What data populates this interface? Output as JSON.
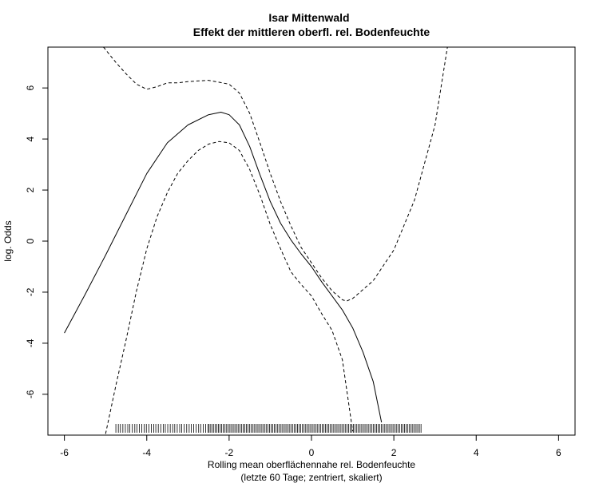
{
  "chart_data": {
    "type": "line",
    "title": "Isar Mittenwald",
    "subtitle": "Effekt der mittleren oberfl. rel. Bodenfeuchte",
    "xlabel": "Rolling mean oberflächennahe rel. Bodenfeuchte",
    "xlabel2": "(letzte 60 Tage; zentriert, skaliert)",
    "ylabel": "log. Odds",
    "xlim": [
      -6.4,
      6.4
    ],
    "ylim": [
      -7.6,
      7.6
    ],
    "xticks": [
      -6,
      -4,
      -2,
      0,
      2,
      4,
      6
    ],
    "yticks": [
      -6,
      -4,
      -2,
      0,
      2,
      4,
      6
    ],
    "grid": false,
    "legend": "none",
    "series": [
      {
        "style": "solid",
        "x": [
          -6.0,
          -5.5,
          -5.0,
          -4.5,
          -4.0,
          -3.5,
          -3.0,
          -2.5,
          -2.2,
          -2.0,
          -1.75,
          -1.5,
          -1.25,
          -1.0,
          -0.75,
          -0.5,
          -0.25,
          0.0,
          0.25,
          0.5,
          0.75,
          1.0,
          1.25,
          1.5,
          1.7
        ],
        "y": [
          -3.6,
          -2.1,
          -0.55,
          1.05,
          2.65,
          3.85,
          4.55,
          4.95,
          5.05,
          4.95,
          4.55,
          3.7,
          2.6,
          1.55,
          0.7,
          0.05,
          -0.5,
          -1.0,
          -1.6,
          -2.15,
          -2.7,
          -3.4,
          -4.35,
          -5.5,
          -7.1
        ]
      },
      {
        "style": "dashed",
        "x": [
          -5.0,
          -4.75,
          -4.5,
          -4.25,
          -4.0,
          -3.75,
          -3.5,
          -3.25,
          -3.0,
          -2.75,
          -2.5,
          -2.25,
          -2.0,
          -1.75,
          -1.5,
          -1.25,
          -1.0,
          -0.75,
          -0.5,
          -0.25,
          0.0,
          0.25,
          0.5,
          0.75,
          1.0
        ],
        "y": [
          -7.55,
          -5.65,
          -3.85,
          -1.95,
          -0.3,
          0.95,
          1.9,
          2.65,
          3.15,
          3.55,
          3.8,
          3.9,
          3.85,
          3.55,
          2.8,
          1.8,
          0.65,
          -0.3,
          -1.2,
          -1.7,
          -2.15,
          -2.85,
          -3.5,
          -4.65,
          -7.45
        ]
      },
      {
        "style": "dashed",
        "x": [
          -5.05,
          -4.75,
          -4.5,
          -4.25,
          -4.0,
          -3.75,
          -3.5,
          -3.25,
          -3.0,
          -2.5,
          -2.0,
          -1.75,
          -1.5,
          -1.25,
          -1.0,
          -0.75,
          -0.5,
          -0.25,
          0.0,
          0.25,
          0.5,
          0.75,
          0.85,
          1.0,
          1.5,
          2.0,
          2.5,
          3.0,
          3.3
        ],
        "y": [
          7.6,
          7.0,
          6.55,
          6.15,
          5.95,
          6.05,
          6.2,
          6.2,
          6.25,
          6.3,
          6.15,
          5.8,
          5.0,
          3.85,
          2.65,
          1.55,
          0.6,
          -0.25,
          -0.85,
          -1.45,
          -1.95,
          -2.3,
          -2.35,
          -2.25,
          -1.55,
          -0.35,
          1.6,
          4.55,
          7.6
        ]
      }
    ],
    "rug_x": [
      -4.75,
      -4.69,
      -4.64,
      -4.58,
      -4.52,
      -4.46,
      -4.41,
      -4.35,
      -4.29,
      -4.24,
      -4.18,
      -4.12,
      -4.06,
      -4.01,
      -3.95,
      -3.89,
      -3.83,
      -3.78,
      -3.72,
      -3.66,
      -3.6,
      -3.55,
      -3.49,
      -3.43,
      -3.37,
      -3.32,
      -3.26,
      -3.2,
      -3.15,
      -3.09,
      -3.03,
      -2.97,
      -2.92,
      -2.86,
      -2.8,
      -2.74,
      -2.69,
      -2.63,
      -2.57,
      -2.51,
      -2.5,
      -2.46,
      -2.42,
      -2.38,
      -2.34,
      -2.3,
      -2.26,
      -2.22,
      -2.18,
      -2.14,
      -2.1,
      -2.06,
      -2.02,
      -1.98,
      -1.94,
      -1.9,
      -1.86,
      -1.82,
      -1.78,
      -1.74,
      -1.7,
      -1.66,
      -1.62,
      -1.58,
      -1.54,
      -1.5,
      -1.46,
      -1.42,
      -1.38,
      -1.34,
      -1.3,
      -1.26,
      -1.22,
      -1.18,
      -1.14,
      -1.1,
      -1.06,
      -1.02,
      -0.98,
      -0.94,
      -0.9,
      -0.86,
      -0.82,
      -0.78,
      -0.74,
      -0.7,
      -0.66,
      -0.62,
      -0.58,
      -0.54,
      -0.5,
      -0.46,
      -0.42,
      -0.38,
      -0.34,
      -0.3,
      -0.26,
      -0.22,
      -0.18,
      -0.14,
      -0.1,
      -0.06,
      -0.02,
      0.02,
      0.06,
      0.1,
      0.14,
      0.18,
      0.22,
      0.26,
      0.3,
      0.34,
      0.38,
      0.42,
      0.46,
      0.5,
      0.54,
      0.58,
      0.62,
      0.66,
      0.7,
      0.74,
      0.78,
      0.82,
      0.86,
      0.9,
      0.94,
      0.98,
      1.02,
      1.06,
      1.1,
      1.14,
      1.18,
      1.22,
      1.26,
      1.3,
      1.34,
      1.38,
      1.42,
      1.46,
      1.5,
      1.54,
      1.58,
      1.62,
      1.66,
      1.7,
      1.74,
      1.78,
      1.82,
      1.86,
      1.9,
      1.94,
      1.98,
      2.02,
      2.06,
      2.1,
      2.14,
      2.18,
      2.22,
      2.26,
      2.3,
      2.34,
      2.38,
      2.42,
      2.46,
      2.5,
      2.54,
      2.58,
      2.62,
      2.66
    ]
  }
}
